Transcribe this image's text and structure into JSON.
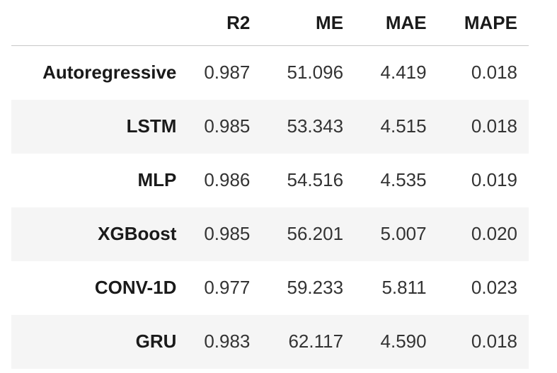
{
  "table": {
    "columns": [
      "",
      "R2",
      "ME",
      "MAE",
      "MAPE"
    ],
    "rows": [
      {
        "label": "Autoregressive",
        "r2": "0.987",
        "me": "51.096",
        "mae": "4.419",
        "mape": "0.018"
      },
      {
        "label": "LSTM",
        "r2": "0.985",
        "me": "53.343",
        "mae": "4.515",
        "mape": "0.018"
      },
      {
        "label": "MLP",
        "r2": "0.986",
        "me": "54.516",
        "mae": "4.535",
        "mape": "0.019"
      },
      {
        "label": "XGBoost",
        "r2": "0.985",
        "me": "56.201",
        "mae": "5.007",
        "mape": "0.020"
      },
      {
        "label": "CONV-1D",
        "r2": "0.977",
        "me": "59.233",
        "mae": "5.811",
        "mape": "0.023"
      },
      {
        "label": "GRU",
        "r2": "0.983",
        "me": "62.117",
        "mae": "4.590",
        "mape": "0.018"
      }
    ]
  },
  "colors": {
    "header_text": "#1a1a1a",
    "cell_text": "#333333",
    "zebra": "#f5f5f5",
    "rule": "#c8c8c8"
  }
}
